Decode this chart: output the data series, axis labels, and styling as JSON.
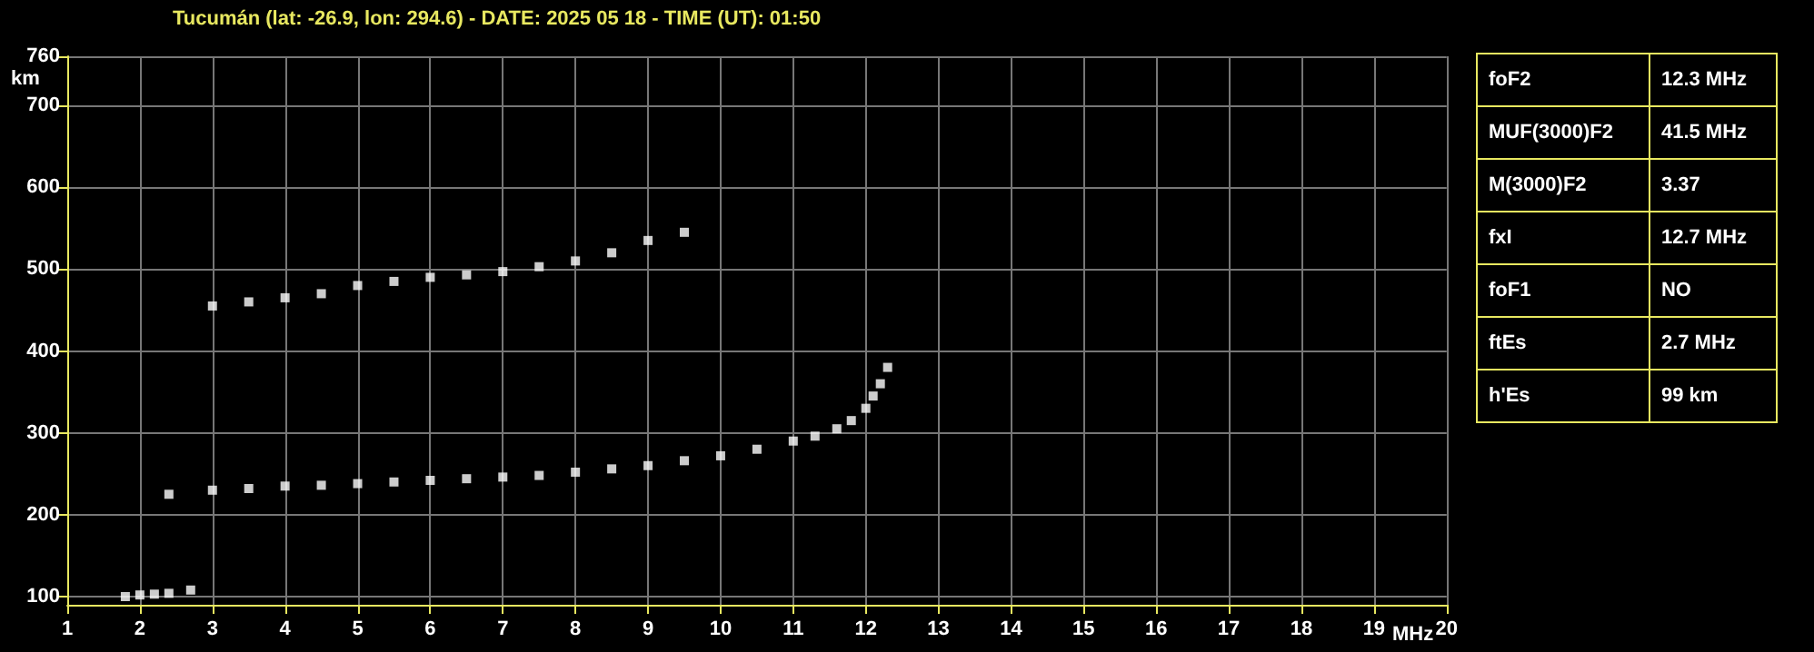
{
  "chart_data": [
    {
      "type": "scatter",
      "title": "Tucumán (lat: -26.9, lon: 294.6) - DATE: 2025 05 18 - TIME (UT): 01:50",
      "xlabel": "MHz",
      "ylabel": "km",
      "xlim": [
        1,
        20
      ],
      "ylim": [
        90,
        760
      ],
      "xticks": [
        1,
        2,
        3,
        4,
        5,
        6,
        7,
        8,
        9,
        10,
        11,
        12,
        13,
        14,
        15,
        16,
        17,
        18,
        19,
        20
      ],
      "yticks": [
        100,
        200,
        300,
        400,
        500,
        600,
        700,
        760
      ],
      "grid": true,
      "marker": "square",
      "series": [
        {
          "color": "#ffffff",
          "x": [
            2.4,
            3,
            3.5,
            4,
            4.5,
            5,
            5.5,
            6,
            6.5,
            7,
            7.5,
            8,
            8.5,
            9,
            9.5,
            10,
            10.5,
            11,
            11.3,
            11.6,
            11.8,
            12,
            12.1,
            12.2,
            12.3
          ],
          "values": [
            225,
            230,
            232,
            235,
            236,
            238,
            240,
            242,
            244,
            246,
            248,
            252,
            256,
            260,
            266,
            272,
            280,
            290,
            296,
            305,
            315,
            330,
            345,
            360,
            380
          ]
        },
        {
          "color": "#ffffff",
          "x": [
            3,
            3.5,
            4,
            4.5,
            5,
            5.5,
            6,
            6.5,
            7,
            7.5,
            8,
            8.5,
            9,
            9.5
          ],
          "values": [
            455,
            460,
            465,
            470,
            480,
            485,
            490,
            493,
            497,
            503,
            510,
            520,
            535,
            545
          ]
        },
        {
          "color": "#ffffff",
          "x": [
            1.8,
            2,
            2.2,
            2.4,
            2.7
          ],
          "values": [
            100,
            102,
            103,
            104,
            108
          ]
        }
      ]
    },
    {
      "type": "other",
      "annotations": [
        "foF2",
        "12.3 MHz",
        "MUF(3000)F2",
        "41.5 MHz",
        "M(3000)F2",
        "3.37",
        "fxI",
        "12.7 MHz",
        "foF1",
        "NO",
        "ftEs",
        "2.7 MHz",
        "h'Es",
        "99 km"
      ]
    }
  ]
}
